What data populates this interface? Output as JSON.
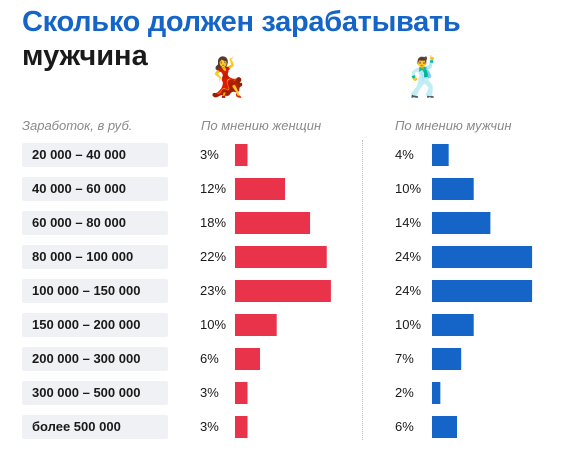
{
  "title": {
    "line1": "Сколько должен зарабатывать",
    "line2": "мужчина"
  },
  "icons": {
    "women": "dancing-woman-icon",
    "men": "dancing-man-icon"
  },
  "headers": {
    "income": "Заработок, в руб.",
    "women": "По мнению женщин",
    "men": "По мнению мужчин"
  },
  "colors": {
    "women": "#e8334a",
    "men": "#1565c8",
    "title": "#1565c8"
  },
  "chart_data": {
    "type": "bar",
    "orientation": "horizontal",
    "categories": [
      "20 000 – 40 000",
      "40 000 – 60 000",
      "60 000 – 80 000",
      "80 000 – 100 000",
      "100 000 – 150 000",
      "150 000 – 200 000",
      "200 000 – 300 000",
      "300 000 – 500 000",
      "более 500 000"
    ],
    "series": [
      {
        "name": "По мнению женщин",
        "values": [
          3,
          12,
          18,
          22,
          23,
          10,
          6,
          3,
          3
        ],
        "labels": [
          "3%",
          "12%",
          "18%",
          "22%",
          "23%",
          "10%",
          "6%",
          "3%",
          "3%"
        ]
      },
      {
        "name": "По мнению мужчин",
        "values": [
          4,
          10,
          14,
          24,
          24,
          10,
          7,
          2,
          6
        ],
        "labels": [
          "4%",
          "10%",
          "14%",
          "24%",
          "24%",
          "10%",
          "7%",
          "2%",
          "6%"
        ]
      }
    ],
    "unit": "%",
    "title": "Сколько должен зарабатывать мужчина",
    "xlabel": "",
    "ylabel": "Заработок, в руб.",
    "grid": false,
    "legend": "column headers"
  }
}
